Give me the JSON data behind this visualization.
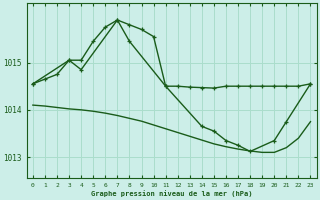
{
  "title": "Graphe pression niveau de la mer (hPa)",
  "background_color": "#cceee8",
  "grid_color": "#aaddcc",
  "line_color": "#1a5c1a",
  "x_ticks": [
    0,
    1,
    2,
    3,
    4,
    5,
    6,
    7,
    8,
    9,
    10,
    11,
    12,
    13,
    14,
    15,
    16,
    17,
    18,
    19,
    20,
    21,
    22,
    23
  ],
  "y_ticks": [
    1013,
    1014,
    1015
  ],
  "ylim": [
    1012.55,
    1016.25
  ],
  "xlim": [
    -0.5,
    23.5
  ],
  "line1_x": [
    0,
    1,
    2,
    3,
    4,
    5,
    6,
    7,
    8,
    9,
    10,
    11,
    12,
    13,
    14,
    15,
    16,
    17,
    18,
    19,
    20,
    21,
    22,
    23
  ],
  "line1_y": [
    1014.55,
    1014.65,
    1014.75,
    1015.05,
    1015.05,
    1015.45,
    1015.75,
    1015.9,
    1015.8,
    1015.7,
    1015.55,
    1014.5,
    1014.5,
    1014.48,
    1014.47,
    1014.46,
    1014.5,
    1014.5,
    1014.5,
    1014.5,
    1014.5,
    1014.5,
    1014.5,
    1014.55
  ],
  "line2_x": [
    0,
    1,
    2,
    3,
    4,
    5,
    6,
    7,
    8,
    9,
    10,
    11,
    12,
    13,
    14,
    15,
    16,
    17,
    18,
    19,
    20,
    21,
    22,
    23
  ],
  "line2_y": [
    1014.1,
    1014.08,
    1014.05,
    1014.02,
    1014.0,
    1013.97,
    1013.93,
    1013.88,
    1013.82,
    1013.76,
    1013.68,
    1013.6,
    1013.52,
    1013.44,
    1013.36,
    1013.28,
    1013.22,
    1013.17,
    1013.13,
    1013.1,
    1013.1,
    1013.2,
    1013.4,
    1013.75
  ],
  "line3_x": [
    0,
    3,
    4,
    7,
    8,
    11,
    14,
    15,
    16,
    17,
    18,
    20,
    21,
    23
  ],
  "line3_y": [
    1014.55,
    1015.05,
    1014.85,
    1015.9,
    1015.45,
    1014.5,
    1013.65,
    1013.55,
    1013.35,
    1013.25,
    1013.12,
    1013.35,
    1013.75,
    1014.55
  ]
}
